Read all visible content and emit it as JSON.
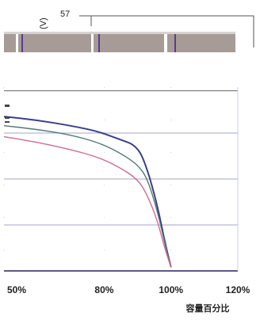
{
  "chart_data": {
    "type": "line",
    "top_label": "57",
    "top_label_unit": "(V)",
    "xlabel": "容量百分比",
    "x_tick_labels": [
      "50%",
      "80%",
      "100%",
      "120%"
    ],
    "x_ticks": [
      0.5,
      0.8,
      1.0,
      1.2
    ],
    "xlim": [
      0.5,
      1.2
    ],
    "ylim": [
      0,
      1
    ],
    "grid": true,
    "series": [
      {
        "color": "#3a3f8a",
        "x": [
          0.5,
          0.6,
          0.7,
          0.78,
          0.84,
          0.9,
          0.93,
          0.96,
          0.98,
          1.0
        ],
        "y": [
          0.84,
          0.82,
          0.79,
          0.76,
          0.72,
          0.68,
          0.55,
          0.35,
          0.17,
          0.02
        ]
      },
      {
        "color": "#4f7a74",
        "x": [
          0.5,
          0.6,
          0.7,
          0.78,
          0.84,
          0.9,
          0.93,
          0.96,
          0.98,
          1.0
        ],
        "y": [
          0.79,
          0.77,
          0.74,
          0.7,
          0.65,
          0.58,
          0.5,
          0.32,
          0.16,
          0.02
        ]
      },
      {
        "color": "#d06a97",
        "x": [
          0.5,
          0.6,
          0.7,
          0.78,
          0.84,
          0.9,
          0.93,
          0.96,
          0.98,
          1.0
        ],
        "y": [
          0.73,
          0.7,
          0.66,
          0.62,
          0.57,
          0.5,
          0.41,
          0.27,
          0.13,
          0.02
        ]
      }
    ],
    "gridline_levels": [
      0.25,
      0.5,
      0.75
    ],
    "divider_level": 0.98
  }
}
